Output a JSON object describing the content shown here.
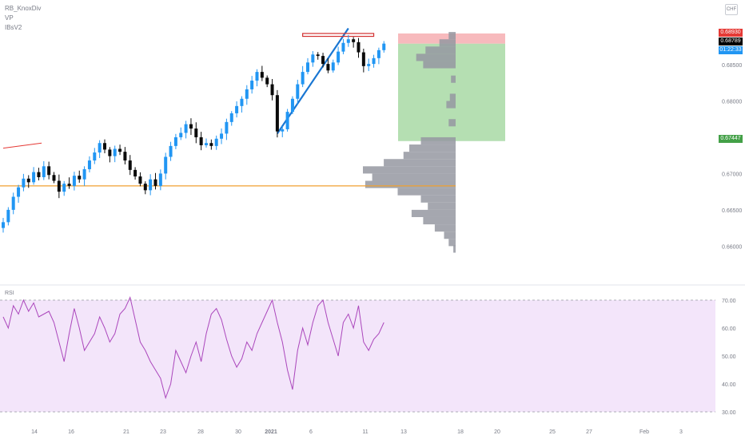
{
  "header": {
    "indicator_1": "RB_KnoxDiv",
    "indicator_2": "VP",
    "indicator_3": "IBsV2",
    "currency": "CHF"
  },
  "colors": {
    "candle_up": "#2196f3",
    "candle_down": "#0b0b0b",
    "trendline": "#1976d2",
    "hline": "#f0a030",
    "stop_zone": "#f5a9ac",
    "target_zone": "#a8d9a5",
    "volume_profile": "#9598a1",
    "rsi_line": "#ab47bc",
    "rsi_band": "#f3e5fa",
    "tag_stop": "#e53935",
    "tag_last": "#000000",
    "tag_timer": "#2196f3",
    "tag_target": "#43a047"
  },
  "price_tags": {
    "stop": "0.68930",
    "last": "0.68789",
    "timer": "01:22:33",
    "target": "0.67447"
  },
  "chart_data": [
    {
      "type": "candlestick",
      "title": "",
      "y_ticks": [
        "0.68500",
        "0.68000",
        "0.67500",
        "0.67000",
        "0.66500",
        "0.66000"
      ],
      "ylim": [
        0.6585,
        0.6905
      ],
      "x_ticks": [
        "14",
        "16",
        "21",
        "23",
        "28",
        "30",
        "2021",
        "6",
        "11",
        "13",
        "18",
        "20",
        "25",
        "27",
        "Feb",
        "3"
      ],
      "closes": [
        0.6633,
        0.665,
        0.6668,
        0.6681,
        0.6693,
        0.6688,
        0.6702,
        0.6695,
        0.671,
        0.6698,
        0.669,
        0.6675,
        0.6686,
        0.6683,
        0.6697,
        0.6692,
        0.6706,
        0.6718,
        0.6729,
        0.6742,
        0.6733,
        0.6724,
        0.6734,
        0.673,
        0.6718,
        0.6705,
        0.6696,
        0.6686,
        0.6677,
        0.6692,
        0.6683,
        0.67,
        0.6723,
        0.6738,
        0.675,
        0.6756,
        0.6768,
        0.6762,
        0.675,
        0.6739,
        0.6742,
        0.6738,
        0.6748,
        0.6755,
        0.6771,
        0.6783,
        0.6793,
        0.6803,
        0.6816,
        0.6828,
        0.684,
        0.6832,
        0.6823,
        0.6808,
        0.6758,
        0.6761,
        0.6785,
        0.6803,
        0.6823,
        0.684,
        0.6853,
        0.6864,
        0.6862,
        0.6851,
        0.6842,
        0.6853,
        0.6868,
        0.688,
        0.6885,
        0.6881,
        0.6867,
        0.6848,
        0.6851,
        0.6859,
        0.687,
        0.6879
      ],
      "trendline": {
        "from": [
          54,
          0.6755
        ],
        "to": [
          68,
          0.69
        ]
      },
      "resistance_box": {
        "x_range": [
          59,
          73
        ],
        "y_range": [
          0.6889,
          0.6893
        ]
      },
      "horizontal_line": 0.6683,
      "old_line": {
        "from": [
          0,
          0.6735
        ],
        "to": [
          6,
          0.6742
        ]
      },
      "position": {
        "entry": 0.68789,
        "stop": 0.6893,
        "target": 0.67447
      },
      "volume_profile": {
        "levels": [
          0.6596,
          0.6605,
          0.6615,
          0.6625,
          0.6635,
          0.6645,
          0.6655,
          0.6665,
          0.6675,
          0.6685,
          0.6695,
          0.6705,
          0.6715,
          0.6725,
          0.6735,
          0.6745,
          0.677,
          0.6795,
          0.6805,
          0.683,
          0.685,
          0.686,
          0.687,
          0.688,
          0.689
        ],
        "volumes": [
          2,
          6,
          10,
          18,
          28,
          38,
          24,
          30,
          50,
          78,
          72,
          80,
          62,
          45,
          40,
          30,
          6,
          8,
          5,
          4,
          28,
          34,
          26,
          14,
          6
        ]
      }
    },
    {
      "type": "line",
      "title": "RSI",
      "y_ticks": [
        "70.00",
        "60.00",
        "50.00",
        "40.00",
        "30.00"
      ],
      "ylim": [
        28,
        72
      ],
      "band": [
        30,
        70
      ],
      "values": [
        64,
        60,
        68,
        65,
        70,
        66,
        69,
        64,
        65,
        66,
        62,
        55,
        48,
        58,
        67,
        60,
        52,
        55,
        58,
        64,
        60,
        55,
        58,
        65,
        67,
        71,
        63,
        55,
        52,
        48,
        45,
        42,
        35,
        40,
        52,
        48,
        44,
        50,
        55,
        48,
        58,
        65,
        67,
        63,
        56,
        50,
        46,
        49,
        55,
        52,
        58,
        62,
        66,
        70,
        62,
        55,
        45,
        38,
        52,
        60,
        54,
        62,
        68,
        70,
        62,
        56,
        50,
        62,
        65,
        60,
        68,
        55,
        52,
        56,
        58,
        62
      ]
    }
  ]
}
